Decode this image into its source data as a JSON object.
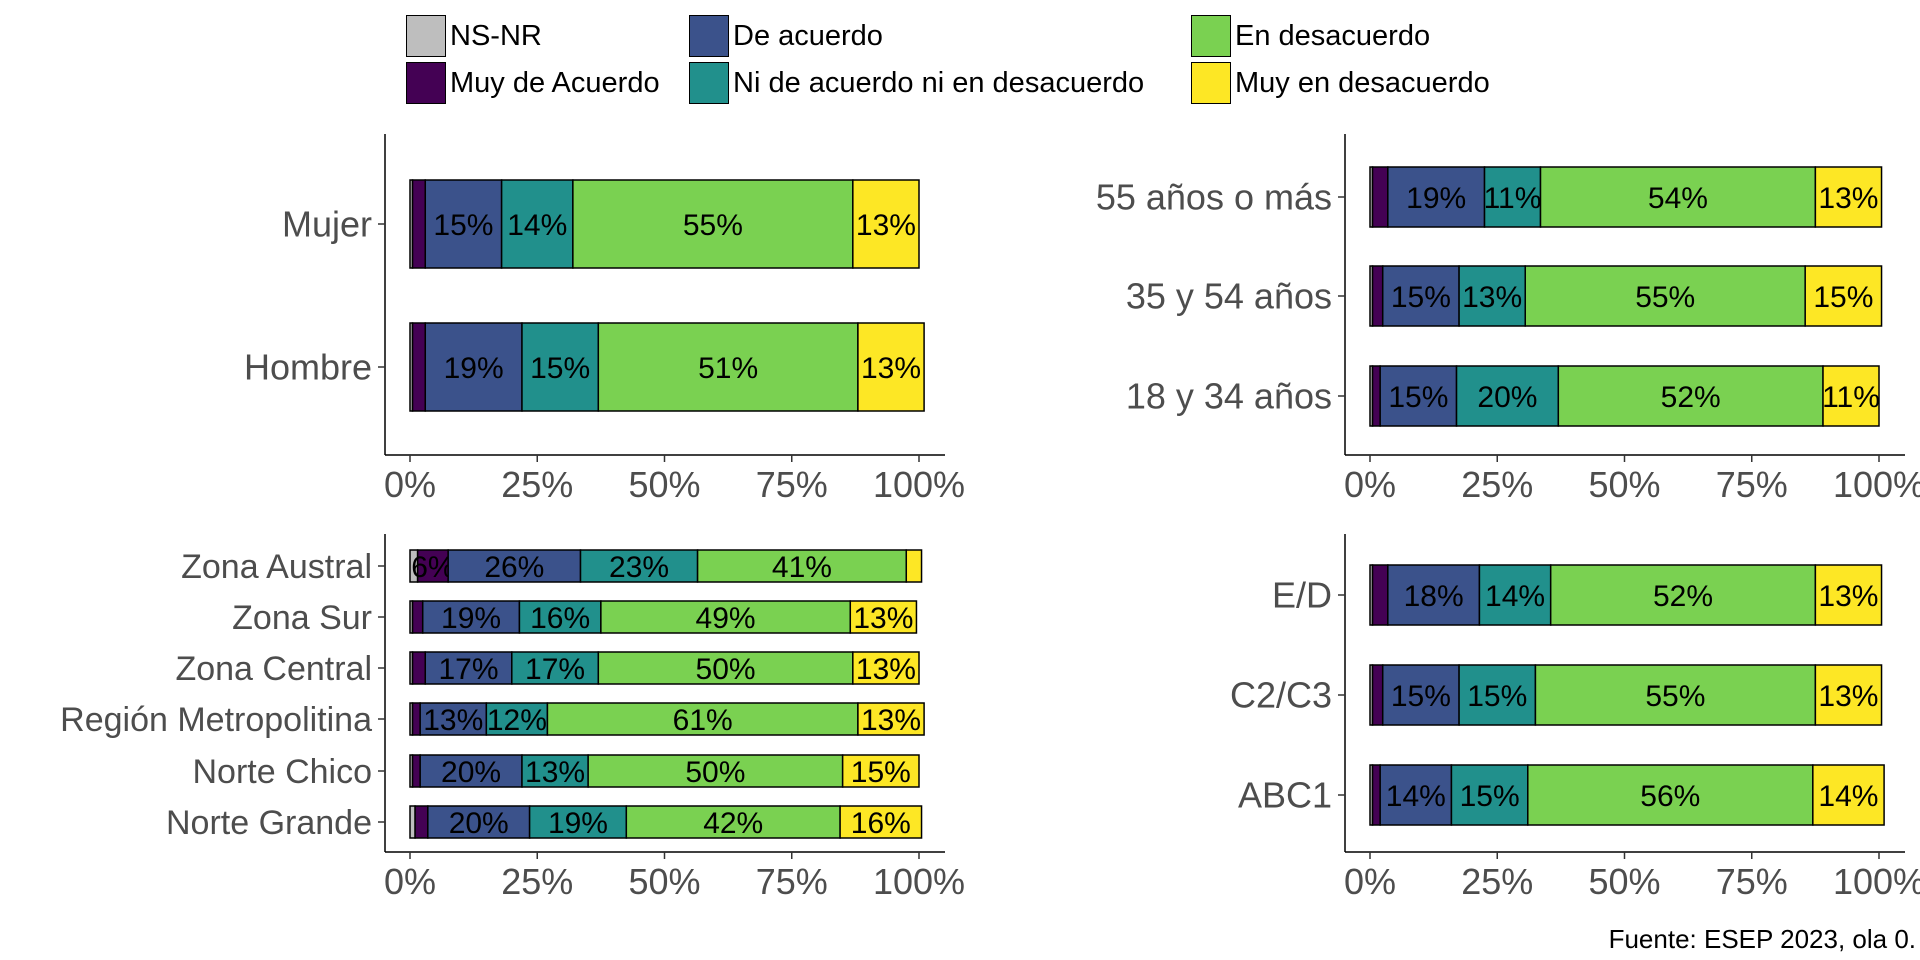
{
  "legend": [
    {
      "label": "NS-NR",
      "color": "#bebebe"
    },
    {
      "label": "Muy de Acuerdo",
      "color": "#440154"
    },
    {
      "label": "De acuerdo",
      "color": "#3b528b"
    },
    {
      "label": "Ni de acuerdo ni en desacuerdo",
      "color": "#21908c"
    },
    {
      "label": "En desacuerdo",
      "color": "#7ad151"
    },
    {
      "label": "Muy en desacuerdo",
      "color": "#fde725"
    }
  ],
  "caption": "Fuente: ESEP 2023, ola 0.",
  "chart_data": [
    {
      "type": "bar",
      "orientation": "horizontal",
      "stacked": true,
      "panel": "sexo",
      "categories": [
        "Mujer",
        "Hombre"
      ],
      "series": [
        {
          "name": "NS-NR",
          "values": [
            0.5,
            0.5
          ]
        },
        {
          "name": "Muy de Acuerdo",
          "values": [
            2.5,
            2.5
          ]
        },
        {
          "name": "De acuerdo",
          "values": [
            15,
            19
          ]
        },
        {
          "name": "Ni de acuerdo ni en desacuerdo",
          "values": [
            14,
            15
          ]
        },
        {
          "name": "En desacuerdo",
          "values": [
            55,
            51
          ]
        },
        {
          "name": "Muy en desacuerdo",
          "values": [
            13,
            13
          ]
        }
      ],
      "xticks": [
        "0%",
        "25%",
        "50%",
        "75%",
        "100%"
      ],
      "xlim": [
        0,
        100
      ]
    },
    {
      "type": "bar",
      "orientation": "horizontal",
      "stacked": true,
      "panel": "edad",
      "categories": [
        "55 años o más",
        "35 y 54 años",
        "18 y 34 años"
      ],
      "series": [
        {
          "name": "NS-NR",
          "values": [
            0.5,
            0.5,
            0.5
          ]
        },
        {
          "name": "Muy de Acuerdo",
          "values": [
            3,
            2,
            1.5
          ]
        },
        {
          "name": "De acuerdo",
          "values": [
            19,
            15,
            15
          ]
        },
        {
          "name": "Ni de acuerdo ni en desacuerdo",
          "values": [
            11,
            13,
            20
          ]
        },
        {
          "name": "En desacuerdo",
          "values": [
            54,
            55,
            52
          ]
        },
        {
          "name": "Muy en desacuerdo",
          "values": [
            13,
            15,
            11
          ]
        }
      ],
      "xticks": [
        "0%",
        "25%",
        "50%",
        "75%",
        "100%"
      ],
      "xlim": [
        0,
        100
      ]
    },
    {
      "type": "bar",
      "orientation": "horizontal",
      "stacked": true,
      "panel": "zona",
      "categories": [
        "Zona Austral",
        "Zona Sur",
        "Zona Central",
        "Región Metropolitina",
        "Norte Chico",
        "Norte Grande"
      ],
      "series": [
        {
          "name": "NS-NR",
          "values": [
            1.5,
            0.5,
            0.5,
            0.5,
            0.5,
            1
          ]
        },
        {
          "name": "Muy de Acuerdo",
          "values": [
            6,
            2,
            2.5,
            1.5,
            1.5,
            2.5
          ]
        },
        {
          "name": "De acuerdo",
          "values": [
            26,
            19,
            17,
            13,
            20,
            20
          ]
        },
        {
          "name": "Ni de acuerdo ni en desacuerdo",
          "values": [
            23,
            16,
            17,
            12,
            13,
            19
          ]
        },
        {
          "name": "En desacuerdo",
          "values": [
            41,
            49,
            50,
            61,
            50,
            42
          ]
        },
        {
          "name": "Muy en desacuerdo",
          "values": [
            3,
            13,
            13,
            13,
            15,
            16
          ]
        }
      ],
      "xticks": [
        "0%",
        "25%",
        "50%",
        "75%",
        "100%"
      ],
      "xlim": [
        0,
        100
      ]
    },
    {
      "type": "bar",
      "orientation": "horizontal",
      "stacked": true,
      "panel": "gse",
      "categories": [
        "E/D",
        "C2/C3",
        "ABC1"
      ],
      "series": [
        {
          "name": "NS-NR",
          "values": [
            0.5,
            0.5,
            0.5
          ]
        },
        {
          "name": "Muy de Acuerdo",
          "values": [
            3,
            2,
            1.5
          ]
        },
        {
          "name": "De acuerdo",
          "values": [
            18,
            15,
            14
          ]
        },
        {
          "name": "Ni de acuerdo ni en desacuerdo",
          "values": [
            14,
            15,
            15
          ]
        },
        {
          "name": "En desacuerdo",
          "values": [
            52,
            55,
            56
          ]
        },
        {
          "name": "Muy en desacuerdo",
          "values": [
            13,
            13,
            14
          ]
        }
      ],
      "xticks": [
        "0%",
        "25%",
        "50%",
        "75%",
        "100%"
      ],
      "xlim": [
        0,
        100
      ]
    }
  ]
}
